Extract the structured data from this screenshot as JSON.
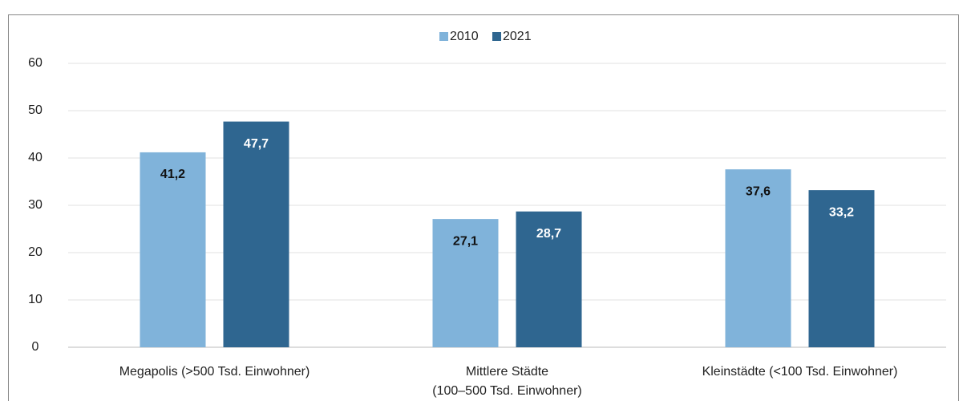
{
  "chart_data": {
    "type": "bar",
    "categories": [
      "Megapolis (>500 Tsd. Einwohner)",
      "Mittlere Städte\n(100–500 Tsd. Einwohner)",
      "Kleinstädte (<100 Tsd. Einwohner)"
    ],
    "series": [
      {
        "name": "2010",
        "color": "#80b3da",
        "label_color": "#111111",
        "values": [
          41.2,
          27.1,
          37.6
        ],
        "value_labels": [
          "41,2",
          "27,1",
          "37,6"
        ]
      },
      {
        "name": "2021",
        "color": "#2f6690",
        "label_color": "#ffffff",
        "values": [
          47.7,
          28.7,
          33.2
        ],
        "value_labels": [
          "47,7",
          "28,7",
          "33,2"
        ]
      }
    ],
    "ylim": [
      0,
      60
    ],
    "yticks": [
      0,
      10,
      20,
      30,
      40,
      50,
      60
    ],
    "grid": true,
    "legend": "top"
  }
}
